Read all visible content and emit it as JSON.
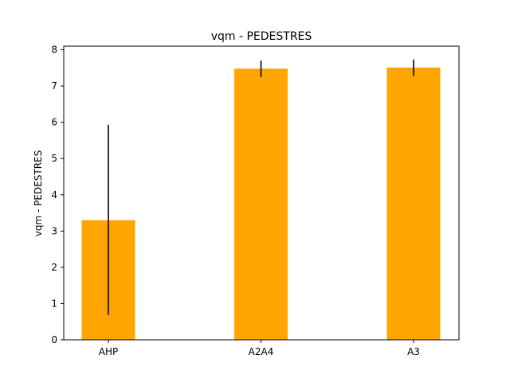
{
  "chart_data": {
    "type": "bar",
    "title": "vqm - PEDESTRES",
    "xlabel": "",
    "ylabel": "vqm - PEDESTRES",
    "categories": [
      "AHP",
      "A2A4",
      "A3"
    ],
    "values": [
      3.3,
      7.48,
      7.51
    ],
    "error_low": [
      0.68,
      7.25,
      7.28
    ],
    "error_high": [
      5.93,
      7.7,
      7.73
    ],
    "ylim": [
      0,
      8.1
    ],
    "yticks": [
      0,
      1,
      2,
      3,
      4,
      5,
      6,
      7,
      8
    ],
    "bar_color": "#ffa500",
    "error_color": "#000000",
    "grid": false,
    "legend": "none"
  }
}
